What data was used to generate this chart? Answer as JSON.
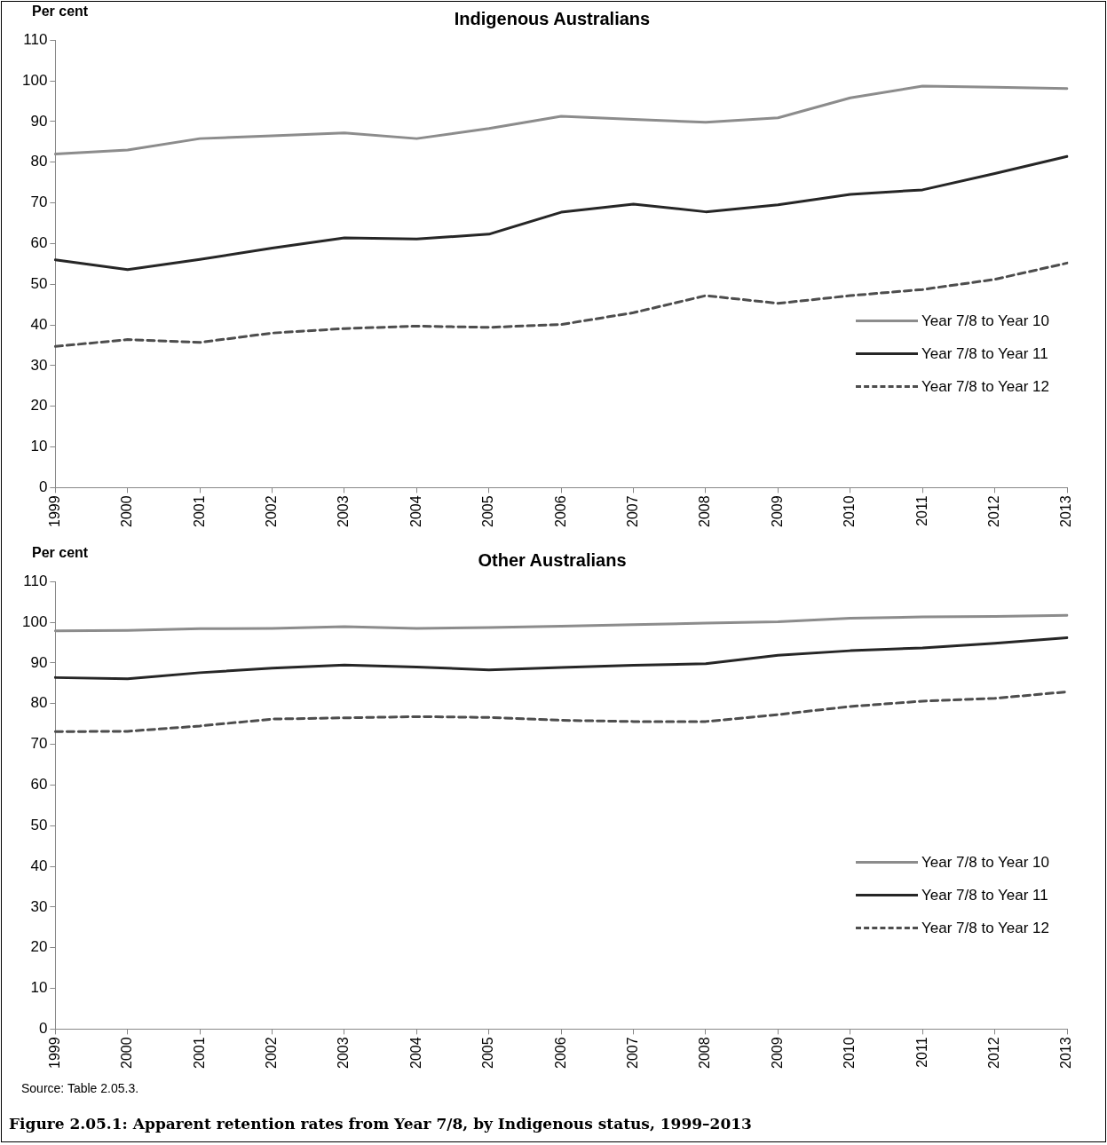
{
  "chart_data": [
    {
      "type": "line",
      "title": "Indigenous Australians",
      "ylabel": "Per cent",
      "categories": [
        "1999",
        "2000",
        "2001",
        "2002",
        "2003",
        "2004",
        "2005",
        "2006",
        "2007",
        "2008",
        "2009",
        "2010",
        "2011",
        "2012",
        "2013"
      ],
      "series": [
        {
          "name": "Year 7/8 to Year 10",
          "color": "#8c8c8c",
          "line_style": "solid",
          "values": [
            82,
            83,
            85.8,
            86.5,
            87.2,
            85.8,
            88.3,
            91.3,
            90.5,
            89.8,
            90.9,
            95.8,
            98.7,
            98.4,
            98.1
          ]
        },
        {
          "name": "Year 7/8 to Year 11",
          "color": "#262626",
          "line_style": "solid",
          "values": [
            56,
            53.6,
            56.1,
            58.9,
            61.4,
            61.1,
            62.3,
            67.7,
            69.7,
            67.8,
            69.5,
            72.1,
            73.2,
            77.2,
            81.4
          ]
        },
        {
          "name": "Year 7/8 to Year 12",
          "color": "#4d4d4d",
          "line_style": "dashed",
          "values": [
            34.7,
            36.4,
            35.7,
            38,
            39.1,
            39.7,
            39.4,
            40.1,
            43,
            47.2,
            45.3,
            47.2,
            48.7,
            51.2,
            55.2
          ]
        }
      ],
      "ylim": [
        0,
        110
      ],
      "yticks": [
        0,
        10,
        20,
        30,
        40,
        50,
        60,
        70,
        80,
        90,
        100,
        110
      ],
      "grid": false,
      "legend": "bottom right",
      "marker": "none"
    },
    {
      "type": "line",
      "title": "Other Australians",
      "ylabel": "Per cent",
      "categories": [
        "1999",
        "2000",
        "2001",
        "2002",
        "2003",
        "2004",
        "2005",
        "2006",
        "2007",
        "2008",
        "2009",
        "2010",
        "2011",
        "2012",
        "2013"
      ],
      "series": [
        {
          "name": "Year 7/8 to Year 10",
          "color": "#8c8c8c",
          "line_style": "solid",
          "values": [
            97.9,
            98,
            98.4,
            98.5,
            98.9,
            98.5,
            98.7,
            99,
            99.4,
            99.8,
            100.1,
            101,
            101.3,
            101.4,
            101.7
          ]
        },
        {
          "name": "Year 7/8 to Year 11",
          "color": "#262626",
          "line_style": "solid",
          "values": [
            86.4,
            86.1,
            87.6,
            88.7,
            89.5,
            89,
            88.3,
            88.9,
            89.4,
            89.8,
            91.9,
            93,
            93.7,
            94.8,
            96.2
          ]
        },
        {
          "name": "Year 7/8 to Year 12",
          "color": "#4d4d4d",
          "line_style": "dashed",
          "values": [
            73.1,
            73.2,
            74.5,
            76.2,
            76.5,
            76.8,
            76.6,
            75.9,
            75.6,
            75.6,
            77.3,
            79.3,
            80.6,
            81.3,
            82.9
          ]
        }
      ],
      "ylim": [
        0,
        110
      ],
      "yticks": [
        0,
        10,
        20,
        30,
        40,
        50,
        60,
        70,
        80,
        90,
        100,
        110
      ],
      "grid": false,
      "legend": "bottom right",
      "marker": "none",
      "annotations": [
        "Source: Table 2.05.3.",
        "Figure 2.05.1: Apparent retention rates from Year 7/8, by Indigenous status, 1999–2013"
      ]
    }
  ]
}
